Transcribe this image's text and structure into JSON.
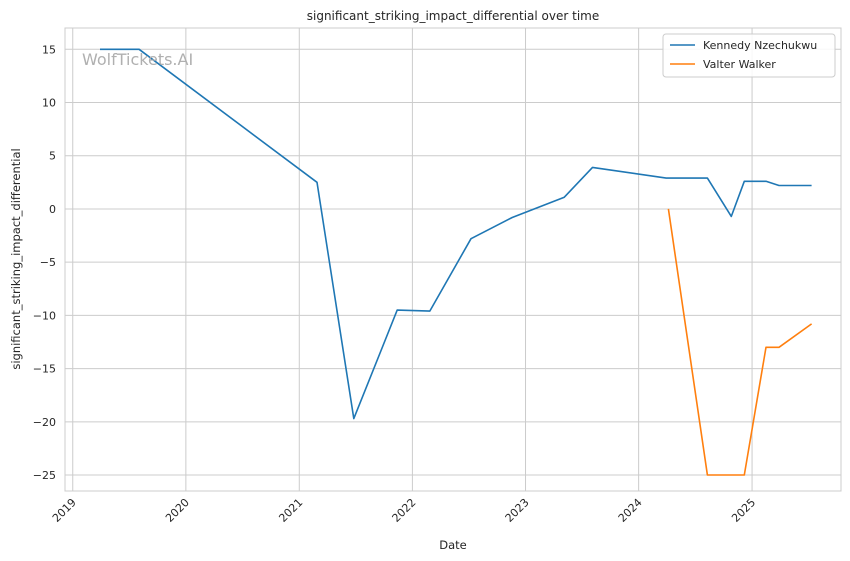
{
  "chart_data": {
    "type": "line",
    "title": "significant_striking_impact_differential over time",
    "xlabel": "Date",
    "ylabel": "significant_striking_impact_differential",
    "watermark": "WolfTickets.AI",
    "x_range": [
      "2018-12-07",
      "2025-10-15"
    ],
    "ylim": [
      -26.5,
      17
    ],
    "x_ticks": [
      "2019",
      "2020",
      "2021",
      "2022",
      "2023",
      "2024",
      "2025"
    ],
    "y_ticks": [
      15,
      10,
      5,
      0,
      -5,
      -10,
      -15,
      -20,
      -25
    ],
    "grid": true,
    "legend_position": "top-right",
    "series": [
      {
        "name": "Kennedy Nzechukwu",
        "color": "#1f77b4",
        "points": [
          [
            "2019-03-30",
            15.0
          ],
          [
            "2019-08-03",
            15.0
          ],
          [
            "2021-02-27",
            2.5
          ],
          [
            "2021-06-26",
            -19.7
          ],
          [
            "2021-11-13",
            -9.5
          ],
          [
            "2022-02-26",
            -9.6
          ],
          [
            "2022-07-09",
            -2.8
          ],
          [
            "2022-11-19",
            -0.8
          ],
          [
            "2023-05-06",
            1.1
          ],
          [
            "2023-08-05",
            3.9
          ],
          [
            "2024-03-30",
            2.9
          ],
          [
            "2024-08-10",
            2.9
          ],
          [
            "2024-10-26",
            -0.7
          ],
          [
            "2024-12-07",
            2.6
          ],
          [
            "2025-02-15",
            2.6
          ],
          [
            "2025-03-29",
            2.2
          ],
          [
            "2025-07-12",
            2.2
          ]
        ]
      },
      {
        "name": "Valter Walker",
        "color": "#ff7f0e",
        "points": [
          [
            "2024-04-06",
            0.0
          ],
          [
            "2024-08-10",
            -25.0
          ],
          [
            "2024-12-07",
            -25.0
          ],
          [
            "2025-02-15",
            -13.0
          ],
          [
            "2025-03-29",
            -13.0
          ],
          [
            "2025-07-12",
            -10.8
          ]
        ]
      }
    ]
  }
}
